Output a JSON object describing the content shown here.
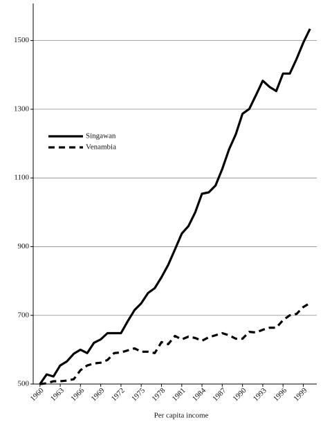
{
  "chart_data": {
    "type": "line",
    "x_label": "Per capita income",
    "x": [
      1960,
      1961,
      1962,
      1963,
      1964,
      1965,
      1966,
      1967,
      1968,
      1969,
      1970,
      1971,
      1972,
      1973,
      1974,
      1975,
      1976,
      1977,
      1978,
      1979,
      1980,
      1981,
      1982,
      1983,
      1984,
      1985,
      1986,
      1987,
      1988,
      1989,
      1990,
      1991,
      1992,
      1993,
      1994,
      1995,
      1996,
      1997,
      1998,
      1999,
      2000
    ],
    "series": [
      {
        "name": "Singawan",
        "color": "#000000",
        "dash": "solid",
        "values": [
          500,
          528,
          522,
          554,
          566,
          588,
          600,
          590,
          620,
          630,
          648,
          648,
          648,
          683,
          715,
          735,
          765,
          779,
          811,
          847,
          892,
          938,
          960,
          1000,
          1054,
          1058,
          1078,
          1126,
          1183,
          1227,
          1287,
          1301,
          1341,
          1383,
          1365,
          1353,
          1404,
          1404,
          1446,
          1494,
          1534
        ]
      },
      {
        "name": "Venambia",
        "color": "#000000",
        "dash": "dashed",
        "values": [
          500,
          502,
          508,
          508,
          510,
          514,
          540,
          554,
          560,
          562,
          570,
          590,
          592,
          598,
          604,
          594,
          594,
          590,
          622,
          616,
          640,
          630,
          638,
          634,
          626,
          636,
          642,
          648,
          642,
          632,
          632,
          652,
          650,
          658,
          664,
          664,
          686,
          700,
          704,
          724,
          736
        ]
      }
    ],
    "xlim": [
      1959,
      2001
    ],
    "xticks": [
      1960,
      1963,
      1966,
      1969,
      1972,
      1975,
      1978,
      1981,
      1984,
      1987,
      1990,
      1993,
      1996,
      1999
    ],
    "ylim": [
      500,
      1604
    ],
    "yticks": [
      500,
      700,
      900,
      1100,
      1300,
      1500
    ],
    "grid": true,
    "legend": "upper left"
  }
}
